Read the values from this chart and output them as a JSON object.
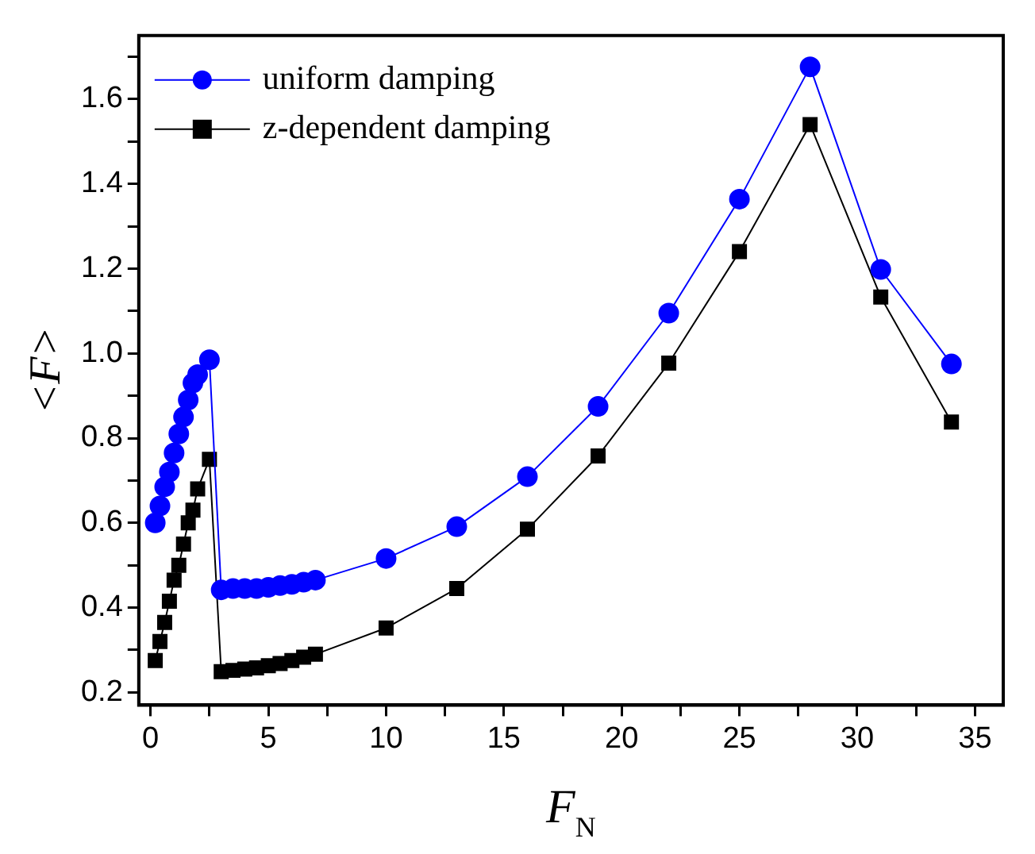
{
  "chart_data": {
    "type": "line",
    "xlabel": "F$_{N}$",
    "ylabel": "<F>",
    "xlim": [
      -0.5,
      36.2
    ],
    "ylim": [
      0.17,
      1.75
    ],
    "xticks": [
      0,
      {
        "value": 2.5,
        "label": null
      },
      5,
      {
        "value": 7.5,
        "label": null
      },
      10,
      {
        "value": 12.5,
        "label": null
      },
      15,
      {
        "value": 17.5,
        "label": null
      },
      20,
      {
        "value": 22.5,
        "label": null
      },
      25,
      {
        "value": 27.5,
        "label": null
      },
      30,
      {
        "value": 32.5,
        "label": null
      },
      35
    ],
    "yticks": [
      {
        "value": 0.2,
        "label": "0.2"
      },
      {
        "value": 0.3,
        "label": null
      },
      {
        "value": 0.4,
        "label": "0.4"
      },
      {
        "value": 0.5,
        "label": null
      },
      {
        "value": 0.6,
        "label": "0.6"
      },
      {
        "value": 0.7,
        "label": null
      },
      {
        "value": 0.8,
        "label": "0.8"
      },
      {
        "value": 0.9,
        "label": null
      },
      {
        "value": 1.0,
        "label": "1.0"
      },
      {
        "value": 1.1,
        "label": null
      },
      {
        "value": 1.2,
        "label": "1.2"
      },
      {
        "value": 1.3,
        "label": null
      },
      {
        "value": 1.4,
        "label": "1.4"
      },
      {
        "value": 1.5,
        "label": null
      },
      {
        "value": 1.6,
        "label": "1.6"
      },
      {
        "value": 1.7,
        "label": null
      }
    ],
    "grid": false,
    "legend": "top left",
    "series": [
      {
        "name": "uniform damping",
        "color": "#0000ff",
        "marker": "circle",
        "x": [
          0.2,
          0.4,
          0.6,
          0.8,
          1.0,
          1.2,
          1.4,
          1.6,
          1.8,
          2.0,
          2.5,
          3.0,
          3.5,
          4.0,
          4.5,
          5.0,
          5.5,
          6.0,
          6.5,
          7.0,
          10,
          13,
          16,
          19,
          22,
          25,
          28,
          31,
          34
        ],
        "values": [
          0.6,
          0.64,
          0.685,
          0.72,
          0.765,
          0.81,
          0.85,
          0.89,
          0.93,
          0.95,
          0.985,
          0.442,
          0.445,
          0.445,
          0.445,
          0.448,
          0.452,
          0.455,
          0.46,
          0.465,
          0.516,
          0.591,
          0.709,
          0.875,
          1.095,
          1.364,
          1.676,
          1.198,
          0.975
        ]
      },
      {
        "name": "z-dependent damping",
        "color": "#000000",
        "marker": "square",
        "x": [
          0.2,
          0.4,
          0.6,
          0.8,
          1.0,
          1.2,
          1.4,
          1.6,
          1.8,
          2.0,
          2.5,
          3.0,
          3.5,
          4.0,
          4.5,
          5.0,
          5.5,
          6.0,
          6.5,
          7.0,
          10,
          13,
          16,
          19,
          22,
          25,
          28,
          31,
          34
        ],
        "values": [
          0.275,
          0.32,
          0.365,
          0.415,
          0.465,
          0.5,
          0.55,
          0.6,
          0.63,
          0.68,
          0.75,
          0.249,
          0.252,
          0.255,
          0.258,
          0.263,
          0.268,
          0.275,
          0.283,
          0.29,
          0.352,
          0.445,
          0.585,
          0.758,
          0.977,
          1.24,
          1.54,
          1.133,
          0.838
        ]
      }
    ]
  }
}
